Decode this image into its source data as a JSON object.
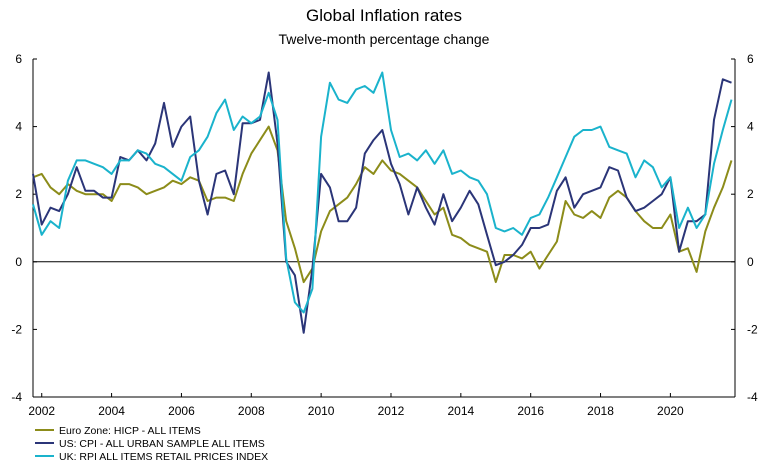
{
  "chart_data": {
    "type": "line",
    "title": "Global Inflation rates",
    "subtitle": "Twelve-month percentage change",
    "xlim": [
      2001.75,
      2021.85
    ],
    "ylim": [
      -4,
      6
    ],
    "x_ticks": [
      2002,
      2004,
      2006,
      2008,
      2010,
      2012,
      2014,
      2016,
      2018,
      2020
    ],
    "x_tick_labels": [
      "2002",
      "2004",
      "2006",
      "2008",
      "2010",
      "2012",
      "2014",
      "2016",
      "2018",
      "2020"
    ],
    "y_ticks": [
      -4,
      -2,
      0,
      2,
      4,
      6
    ],
    "y_tick_labels": [
      "-4",
      "-2",
      "0",
      "2",
      "4",
      "6"
    ],
    "y_axis_both_sides": true,
    "grid": false,
    "zero_line": true,
    "legend_position": "bottom-left",
    "series": [
      {
        "name": "Euro Zone: HICP - ALL ITEMS",
        "color": "#8c8c1a",
        "points": [
          [
            2001.75,
            2.5
          ],
          [
            2002.0,
            2.6
          ],
          [
            2002.25,
            2.2
          ],
          [
            2002.5,
            2.0
          ],
          [
            2002.75,
            2.3
          ],
          [
            2003.0,
            2.1
          ],
          [
            2003.25,
            2.0
          ],
          [
            2003.5,
            2.0
          ],
          [
            2003.75,
            2.0
          ],
          [
            2004.0,
            1.8
          ],
          [
            2004.25,
            2.3
          ],
          [
            2004.5,
            2.3
          ],
          [
            2004.75,
            2.2
          ],
          [
            2005.0,
            2.0
          ],
          [
            2005.25,
            2.1
          ],
          [
            2005.5,
            2.2
          ],
          [
            2005.75,
            2.4
          ],
          [
            2006.0,
            2.3
          ],
          [
            2006.25,
            2.5
          ],
          [
            2006.5,
            2.4
          ],
          [
            2006.75,
            1.8
          ],
          [
            2007.0,
            1.9
          ],
          [
            2007.25,
            1.9
          ],
          [
            2007.5,
            1.8
          ],
          [
            2007.75,
            2.6
          ],
          [
            2008.0,
            3.2
          ],
          [
            2008.25,
            3.6
          ],
          [
            2008.5,
            4.0
          ],
          [
            2008.75,
            3.3
          ],
          [
            2009.0,
            1.2
          ],
          [
            2009.25,
            0.4
          ],
          [
            2009.5,
            -0.6
          ],
          [
            2009.75,
            -0.2
          ],
          [
            2010.0,
            0.9
          ],
          [
            2010.25,
            1.5
          ],
          [
            2010.5,
            1.7
          ],
          [
            2010.75,
            1.9
          ],
          [
            2011.0,
            2.3
          ],
          [
            2011.25,
            2.8
          ],
          [
            2011.5,
            2.6
          ],
          [
            2011.75,
            3.0
          ],
          [
            2012.0,
            2.7
          ],
          [
            2012.25,
            2.6
          ],
          [
            2012.5,
            2.4
          ],
          [
            2012.75,
            2.2
          ],
          [
            2013.0,
            1.8
          ],
          [
            2013.25,
            1.4
          ],
          [
            2013.5,
            1.6
          ],
          [
            2013.75,
            0.8
          ],
          [
            2014.0,
            0.7
          ],
          [
            2014.25,
            0.5
          ],
          [
            2014.5,
            0.4
          ],
          [
            2014.75,
            0.3
          ],
          [
            2015.0,
            -0.6
          ],
          [
            2015.25,
            0.2
          ],
          [
            2015.5,
            0.2
          ],
          [
            2015.75,
            0.1
          ],
          [
            2016.0,
            0.3
          ],
          [
            2016.25,
            -0.2
          ],
          [
            2016.5,
            0.2
          ],
          [
            2016.75,
            0.6
          ],
          [
            2017.0,
            1.8
          ],
          [
            2017.25,
            1.4
          ],
          [
            2017.5,
            1.3
          ],
          [
            2017.75,
            1.5
          ],
          [
            2018.0,
            1.3
          ],
          [
            2018.25,
            1.9
          ],
          [
            2018.5,
            2.1
          ],
          [
            2018.75,
            1.9
          ],
          [
            2019.0,
            1.5
          ],
          [
            2019.25,
            1.2
          ],
          [
            2019.5,
            1.0
          ],
          [
            2019.75,
            1.0
          ],
          [
            2020.0,
            1.4
          ],
          [
            2020.25,
            0.3
          ],
          [
            2020.5,
            0.4
          ],
          [
            2020.75,
            -0.3
          ],
          [
            2021.0,
            0.9
          ],
          [
            2021.25,
            1.6
          ],
          [
            2021.5,
            2.2
          ],
          [
            2021.75,
            3.0
          ]
        ]
      },
      {
        "name": "US: CPI - ALL URBAN SAMPLE ALL ITEMS",
        "color": "#2b3578",
        "points": [
          [
            2001.75,
            2.6
          ],
          [
            2002.0,
            1.1
          ],
          [
            2002.25,
            1.6
          ],
          [
            2002.5,
            1.5
          ],
          [
            2002.75,
            2.0
          ],
          [
            2003.0,
            2.8
          ],
          [
            2003.25,
            2.1
          ],
          [
            2003.5,
            2.1
          ],
          [
            2003.75,
            1.9
          ],
          [
            2004.0,
            1.9
          ],
          [
            2004.25,
            3.1
          ],
          [
            2004.5,
            3.0
          ],
          [
            2004.75,
            3.3
          ],
          [
            2005.0,
            3.0
          ],
          [
            2005.25,
            3.5
          ],
          [
            2005.5,
            4.7
          ],
          [
            2005.75,
            3.4
          ],
          [
            2006.0,
            4.0
          ],
          [
            2006.25,
            4.3
          ],
          [
            2006.5,
            2.4
          ],
          [
            2006.75,
            1.4
          ],
          [
            2007.0,
            2.6
          ],
          [
            2007.25,
            2.7
          ],
          [
            2007.5,
            2.0
          ],
          [
            2007.75,
            4.1
          ],
          [
            2008.0,
            4.1
          ],
          [
            2008.25,
            4.2
          ],
          [
            2008.5,
            5.6
          ],
          [
            2008.75,
            3.5
          ],
          [
            2009.0,
            0.0
          ],
          [
            2009.25,
            -0.4
          ],
          [
            2009.5,
            -2.1
          ],
          [
            2009.75,
            -0.2
          ],
          [
            2010.0,
            2.6
          ],
          [
            2010.25,
            2.2
          ],
          [
            2010.5,
            1.2
          ],
          [
            2010.75,
            1.2
          ],
          [
            2011.0,
            1.6
          ],
          [
            2011.25,
            3.2
          ],
          [
            2011.5,
            3.6
          ],
          [
            2011.75,
            3.9
          ],
          [
            2012.0,
            2.9
          ],
          [
            2012.25,
            2.3
          ],
          [
            2012.5,
            1.4
          ],
          [
            2012.75,
            2.2
          ],
          [
            2013.0,
            1.6
          ],
          [
            2013.25,
            1.1
          ],
          [
            2013.5,
            2.0
          ],
          [
            2013.75,
            1.2
          ],
          [
            2014.0,
            1.6
          ],
          [
            2014.25,
            2.1
          ],
          [
            2014.5,
            1.7
          ],
          [
            2014.75,
            0.8
          ],
          [
            2015.0,
            -0.1
          ],
          [
            2015.25,
            0.0
          ],
          [
            2015.5,
            0.2
          ],
          [
            2015.75,
            0.5
          ],
          [
            2016.0,
            1.0
          ],
          [
            2016.25,
            1.0
          ],
          [
            2016.5,
            1.1
          ],
          [
            2016.75,
            2.1
          ],
          [
            2017.0,
            2.5
          ],
          [
            2017.25,
            1.6
          ],
          [
            2017.5,
            2.0
          ],
          [
            2017.75,
            2.1
          ],
          [
            2018.0,
            2.2
          ],
          [
            2018.25,
            2.8
          ],
          [
            2018.5,
            2.7
          ],
          [
            2018.75,
            1.9
          ],
          [
            2019.0,
            1.5
          ],
          [
            2019.25,
            1.6
          ],
          [
            2019.5,
            1.8
          ],
          [
            2019.75,
            2.0
          ],
          [
            2020.0,
            2.5
          ],
          [
            2020.25,
            0.3
          ],
          [
            2020.5,
            1.2
          ],
          [
            2020.75,
            1.2
          ],
          [
            2021.0,
            1.4
          ],
          [
            2021.25,
            4.2
          ],
          [
            2021.5,
            5.4
          ],
          [
            2021.75,
            5.3
          ]
        ]
      },
      {
        "name": "UK: RPI ALL ITEMS RETAIL PRICES INDEX",
        "color": "#1ab3cc",
        "points": [
          [
            2001.75,
            1.7
          ],
          [
            2002.0,
            0.8
          ],
          [
            2002.25,
            1.2
          ],
          [
            2002.5,
            1.0
          ],
          [
            2002.75,
            2.4
          ],
          [
            2003.0,
            3.0
          ],
          [
            2003.25,
            3.0
          ],
          [
            2003.5,
            2.9
          ],
          [
            2003.75,
            2.8
          ],
          [
            2004.0,
            2.6
          ],
          [
            2004.25,
            3.0
          ],
          [
            2004.5,
            3.0
          ],
          [
            2004.75,
            3.3
          ],
          [
            2005.0,
            3.2
          ],
          [
            2005.25,
            2.9
          ],
          [
            2005.5,
            2.8
          ],
          [
            2005.75,
            2.6
          ],
          [
            2006.0,
            2.4
          ],
          [
            2006.25,
            3.1
          ],
          [
            2006.5,
            3.3
          ],
          [
            2006.75,
            3.7
          ],
          [
            2007.0,
            4.4
          ],
          [
            2007.25,
            4.8
          ],
          [
            2007.5,
            3.9
          ],
          [
            2007.75,
            4.3
          ],
          [
            2008.0,
            4.1
          ],
          [
            2008.25,
            4.3
          ],
          [
            2008.5,
            5.0
          ],
          [
            2008.75,
            4.2
          ],
          [
            2009.0,
            0.1
          ],
          [
            2009.25,
            -1.2
          ],
          [
            2009.5,
            -1.5
          ],
          [
            2009.75,
            -0.8
          ],
          [
            2010.0,
            3.7
          ],
          [
            2010.25,
            5.3
          ],
          [
            2010.5,
            4.8
          ],
          [
            2010.75,
            4.7
          ],
          [
            2011.0,
            5.1
          ],
          [
            2011.25,
            5.2
          ],
          [
            2011.5,
            5.0
          ],
          [
            2011.75,
            5.6
          ],
          [
            2012.0,
            3.9
          ],
          [
            2012.25,
            3.1
          ],
          [
            2012.5,
            3.2
          ],
          [
            2012.75,
            3.0
          ],
          [
            2013.0,
            3.3
          ],
          [
            2013.25,
            2.9
          ],
          [
            2013.5,
            3.3
          ],
          [
            2013.75,
            2.6
          ],
          [
            2014.0,
            2.7
          ],
          [
            2014.25,
            2.5
          ],
          [
            2014.5,
            2.4
          ],
          [
            2014.75,
            2.0
          ],
          [
            2015.0,
            1.0
          ],
          [
            2015.25,
            0.9
          ],
          [
            2015.5,
            1.0
          ],
          [
            2015.75,
            0.8
          ],
          [
            2016.0,
            1.3
          ],
          [
            2016.25,
            1.4
          ],
          [
            2016.5,
            1.9
          ],
          [
            2016.75,
            2.5
          ],
          [
            2017.0,
            3.1
          ],
          [
            2017.25,
            3.7
          ],
          [
            2017.5,
            3.9
          ],
          [
            2017.75,
            3.9
          ],
          [
            2018.0,
            4.0
          ],
          [
            2018.25,
            3.4
          ],
          [
            2018.5,
            3.3
          ],
          [
            2018.75,
            3.2
          ],
          [
            2019.0,
            2.5
          ],
          [
            2019.25,
            3.0
          ],
          [
            2019.5,
            2.8
          ],
          [
            2019.75,
            2.2
          ],
          [
            2020.0,
            2.5
          ],
          [
            2020.25,
            1.0
          ],
          [
            2020.5,
            1.6
          ],
          [
            2020.75,
            1.0
          ],
          [
            2021.0,
            1.4
          ],
          [
            2021.25,
            2.9
          ],
          [
            2021.5,
            3.9
          ],
          [
            2021.75,
            4.8
          ]
        ]
      }
    ]
  }
}
